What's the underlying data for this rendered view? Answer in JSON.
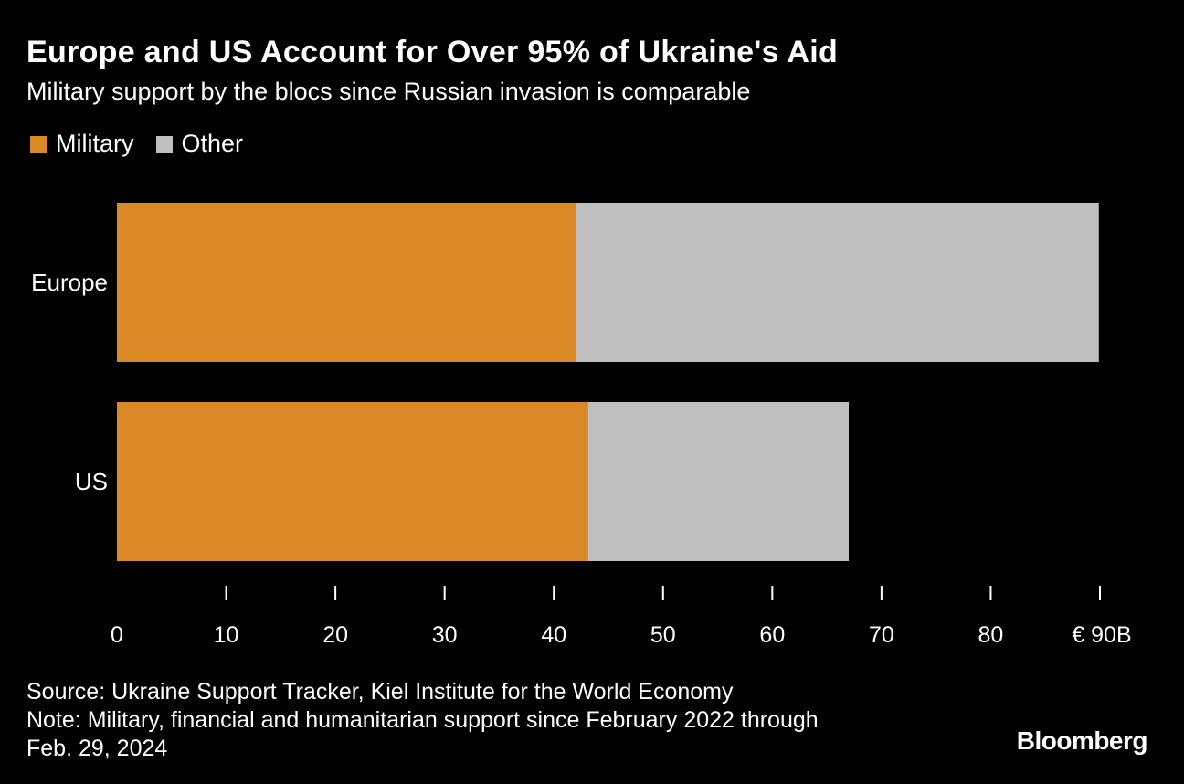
{
  "title": "Europe and US Account for Over 95% of Ukraine's Aid",
  "subtitle": "Military support by the blocs since Russian invasion is comparable",
  "legend": [
    {
      "label": "Military",
      "color": "#db8926"
    },
    {
      "label": "Other",
      "color": "#bfbfbf"
    }
  ],
  "chart_data": {
    "type": "bar",
    "orientation": "horizontal",
    "stacked": true,
    "categories": [
      "Europe",
      "US"
    ],
    "series": [
      {
        "name": "Military",
        "color": "#db8926",
        "values": [
          42.0,
          43.1
        ]
      },
      {
        "name": "Other",
        "color": "#bfbfbf",
        "values": [
          47.9,
          23.9
        ]
      }
    ],
    "xlim": [
      0,
      90
    ],
    "xticks": [
      0,
      10,
      20,
      30,
      40,
      50,
      60,
      70,
      80,
      90
    ],
    "xtick_labels": [
      "0",
      "10",
      "20",
      "30",
      "40",
      "50",
      "60",
      "70",
      "80",
      "€ 90B"
    ],
    "xlabel": "",
    "ylabel": "",
    "grid": false,
    "legend_position": "top-left"
  },
  "footer": {
    "source": "Source: Ukraine Support Tracker, Kiel Institute for the World Economy",
    "note_line1": "Note: Military, financial and humanitarian support since February 2022 through",
    "note_line2": "Feb. 29, 2024"
  },
  "brand": "Bloomberg"
}
